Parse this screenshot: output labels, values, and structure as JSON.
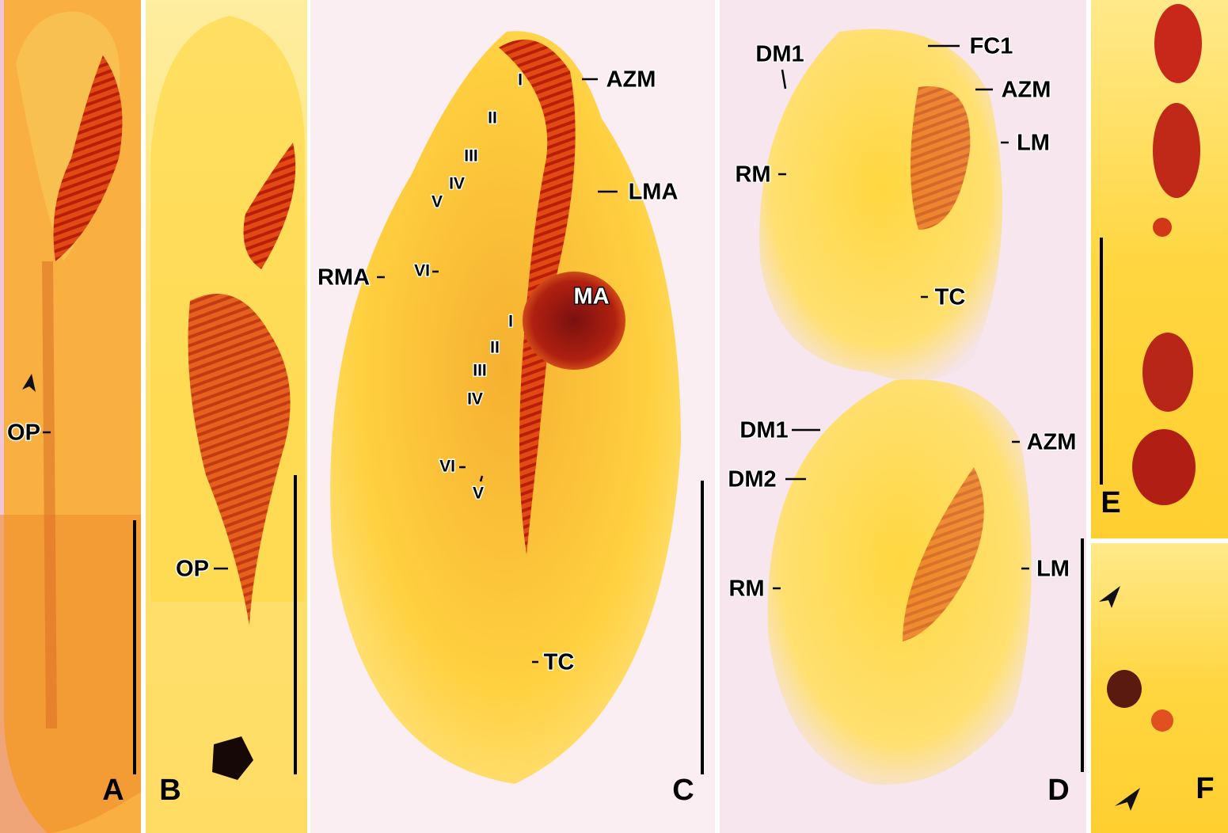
{
  "panels": [
    {
      "letter": "A",
      "labels": [
        "OP"
      ]
    },
    {
      "letter": "B",
      "labels": [
        "OP"
      ]
    },
    {
      "letter": "C",
      "labels": [
        "AZM",
        "I",
        "II",
        "III",
        "IV",
        "V",
        "LMA",
        "RMA",
        "VI",
        "MA",
        "I",
        "II",
        "III",
        "IV",
        "VI",
        "V",
        "TC"
      ]
    },
    {
      "letter": "D",
      "labels": [
        "DM1",
        "FC1",
        "AZM",
        "LM",
        "RM",
        "TC",
        "DM1",
        "DM2",
        "AZM",
        "LM",
        "RM"
      ]
    },
    {
      "letter": "E"
    },
    {
      "letter": "F"
    }
  ]
}
